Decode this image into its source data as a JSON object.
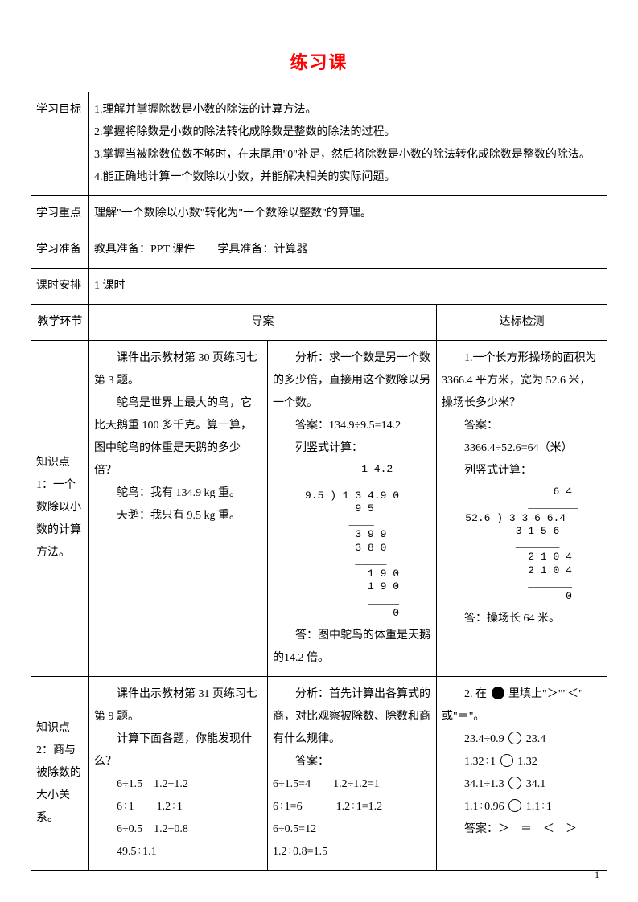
{
  "title": "练习课",
  "rows": {
    "objectives_label": "学习目标",
    "objectives": [
      "1.理解并掌握除数是小数的除法的计算方法。",
      "2.掌握将除数是小数的除法转化成除数是整数的除法的过程。",
      "3.掌握当被除数位数不够时，在末尾用\"0\"补足，然后将除数是小数的除法转化成除数是整数的除法。",
      "4.能正确地计算一个数除以小数，并能解决相关的实际问题。"
    ],
    "keypoint_label": "学习重点",
    "keypoint": "理解\"一个数除以小数\"转化为\"一个数除以整数\"的算理。",
    "prep_label": "学习准备",
    "prep": "教具准备：PPT 课件　　学具准备：计算器",
    "period_label": "课时安排",
    "period": "1 课时",
    "stage_label": "教学环节",
    "guide_label": "导案",
    "check_label": "达标检测"
  },
  "kp1": {
    "label": "知识点 1：一个数除以小数的计算方法。",
    "left": {
      "l1": "课件出示教材第 30 页练习七第 3 题。",
      "l2": "鸵鸟是世界上最大的鸟，它比天鹅重 100 多千克。算一算，图中鸵鸟的体重是天鹅的多少倍？",
      "l3": "鸵鸟：我有 134.9 kg 重。",
      "l4": "天鹅：我只有 9.5 kg 重。"
    },
    "mid": {
      "m1": "分析：求一个数是另一个数的多少倍，直接用这个数除以另一个数。",
      "m2": "答案：134.9÷9.5=14.2",
      "m3": "列竖式计算：",
      "m4": "答：图中鸵鸟的体重是天鹅的14.2 倍。",
      "longdiv": "         1 4.2\n       ________\n9.5 ) 1 3 4.9 0\n        9 5\n       ____\n        3 9 9\n        3 8 0\n        _____\n          1 9 0\n          1 9 0\n          _____\n              0"
    },
    "right": {
      "r1": "1.一个长方形操场的面积为3366.4 平方米，宽为 52.6 米，操场长多少米？",
      "r2": "答案：",
      "r3": "3366.4÷52.6=64（米）",
      "r4": "列竖式计算：",
      "r5": "答：操场长 64 米。",
      "longdiv": "              6 4\n          ________\n52.6 ) 3 3 6 6.4\n        3 1 5 6\n        _______\n          2 1 0 4\n          2 1 0 4\n          _______\n                0"
    }
  },
  "kp2": {
    "label": "知识点 2：商与被除数的大小关系。",
    "left": {
      "l1": "课件出示教材第 31 页练习七第 9 题。",
      "l2": "计算下面各题，你能发现什么？",
      "rows": [
        "6÷1.5　1.2÷1.2",
        "6÷1　　1.2÷1",
        "6÷0.5　1.2÷0.8",
        "49.5÷1.1"
      ]
    },
    "mid": {
      "m1": "分析：首先计算出各算式的商，对比观察被除数、除数和商有什么规律。",
      "m2": "答案：",
      "rows": [
        "6÷1.5=4　　1.2÷1.2=1",
        "6÷1=6　　　1.2÷1=1.2",
        "6÷0.5=12",
        "1.2÷0.8=1.5"
      ]
    },
    "right": {
      "stem_a": "2. 在",
      "stem_b": "里填上\"＞\"\"＜\"",
      "stem_c": "或\"＝\"。",
      "items": [
        {
          "a": "23.4÷0.9",
          "b": "23.4"
        },
        {
          "a": "1.32÷1",
          "b": "1.32"
        },
        {
          "a": "34.1÷1.3",
          "b": "34.1"
        },
        {
          "a": "1.1÷0.96",
          "b": "1.1÷1"
        }
      ],
      "ans": "答案：＞　＝　＜　＞"
    }
  },
  "page_number": "1",
  "colors": {
    "title": "#ff0000",
    "border": "#000000",
    "text": "#000000",
    "bg": "#ffffff"
  }
}
